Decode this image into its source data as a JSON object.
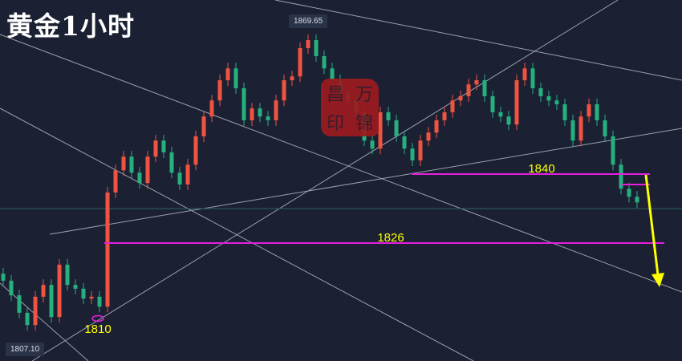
{
  "title": "黄金1小时",
  "seal_text": [
    "昌",
    "万",
    "印",
    "锦"
  ],
  "colors": {
    "background": "#1b2133",
    "up": "#ef5342",
    "down": "#26b07e",
    "support": "#e51ee0",
    "annotation": "#ffff00",
    "trendline": "#9aa0aa",
    "price_line": "#2f5e5a"
  },
  "chart_data": {
    "type": "candlestick",
    "title": "黄金1小时",
    "timeframe": "1 hour",
    "ylim": [
      1803,
      1872
    ],
    "grid": false,
    "close": [
      1817.8,
      1814.7,
      1811.0,
      1808.4,
      1814.4,
      1816.9,
      1810.1,
      1821.2,
      1816.9,
      1816.1,
      1814.0,
      1814.4,
      1812.3,
      1836.5,
      1841.2,
      1844.1,
      1840.7,
      1838.5,
      1844.1,
      1847.5,
      1845.0,
      1840.7,
      1838.2,
      1842.4,
      1848.4,
      1852.6,
      1856.0,
      1860.3,
      1862.8,
      1858.6,
      1851.8,
      1854.3,
      1852.6,
      1851.8,
      1856.0,
      1860.3,
      1861.1,
      1867.1,
      1868.8,
      1865.4,
      1862.8,
      1860.3,
      1857.7,
      1856.0,
      1853.5,
      1847.5,
      1845.8,
      1853.5,
      1851.8,
      1848.4,
      1845.8,
      1843.3,
      1847.5,
      1849.2,
      1851.8,
      1853.5,
      1856.0,
      1856.9,
      1859.4,
      1860.3,
      1856.9,
      1853.5,
      1852.6,
      1850.9,
      1860.3,
      1862.8,
      1858.6,
      1856.9,
      1856.0,
      1855.2,
      1851.8,
      1847.5,
      1852.6,
      1855.2,
      1851.8,
      1848.4,
      1842.4,
      1837.3,
      1835.6,
      1834.4
    ],
    "high_label": "1869.65",
    "low_label": "1807.10",
    "levels": [
      {
        "label": "1840",
        "value": 1840
      },
      {
        "label": "1826",
        "value": 1826
      },
      {
        "label": "1810",
        "value": 1810
      }
    ],
    "annotations": [
      "down arrow toward 1826 and below"
    ]
  }
}
